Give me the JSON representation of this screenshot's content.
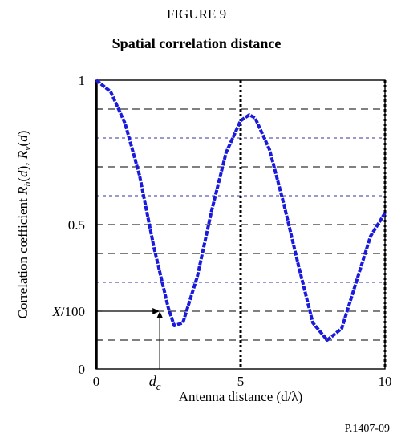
{
  "figure": {
    "label": "FIGURE 9",
    "title": "Spatial correlation distance",
    "reference": "P.1407-09"
  },
  "colors": {
    "curve": "#1a1adc",
    "grid_black": "#000000",
    "grid_blue": "#3333aa"
  },
  "chart_data": {
    "type": "line",
    "title": "Spatial correlation distance",
    "xlabel": "Antenna distance (d/λ)",
    "ylabel": "Correlation cœfficient R_h(d), R_v(d)",
    "xlim": [
      0,
      10
    ],
    "ylim": [
      0,
      1
    ],
    "x_ticks": [
      {
        "value": 0,
        "label": "0"
      },
      {
        "value": 5,
        "label": "5"
      },
      {
        "value": 10,
        "label": "10"
      }
    ],
    "y_ticks": [
      {
        "value": 0,
        "label": "0"
      },
      {
        "value": 0.5,
        "label": "0.5"
      },
      {
        "value": 1,
        "label": "1"
      }
    ],
    "annotations": {
      "y_marker": {
        "value": 0.2,
        "label": "X/100"
      },
      "x_marker": {
        "value": 2.2,
        "label": "d",
        "subscript": "c"
      }
    },
    "series": [
      {
        "values_x": [
          0,
          0.5,
          1,
          1.5,
          2,
          2.5,
          2.7,
          3,
          3.5,
          4,
          4.5,
          5,
          5.3,
          5.5,
          6,
          6.5,
          7,
          7.5,
          8,
          8.5,
          9,
          9.5,
          10
        ],
        "values_y": [
          1.0,
          0.96,
          0.85,
          0.67,
          0.42,
          0.21,
          0.15,
          0.16,
          0.32,
          0.55,
          0.75,
          0.86,
          0.88,
          0.87,
          0.76,
          0.57,
          0.36,
          0.16,
          0.1,
          0.14,
          0.3,
          0.46,
          0.54
        ]
      }
    ]
  }
}
